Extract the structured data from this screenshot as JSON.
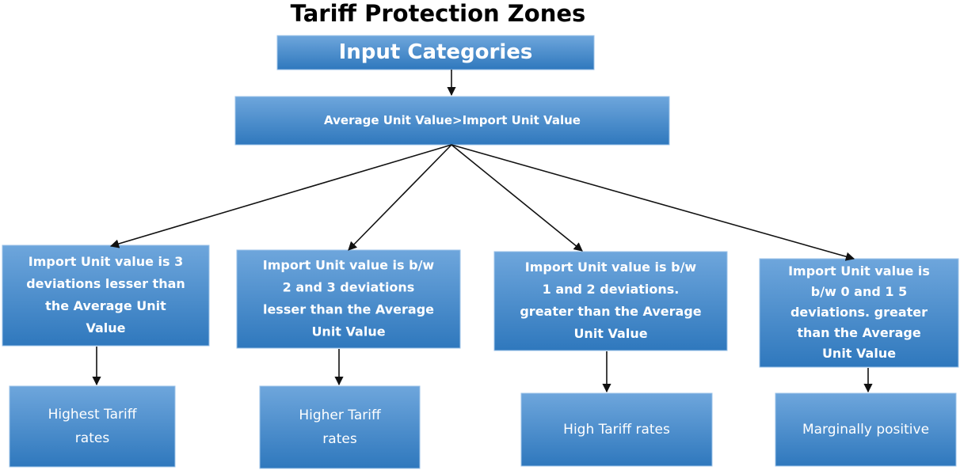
{
  "title": "Tariff Protection Zones",
  "nodes": [
    {
      "lines": [
        "Input Categories"
      ]
    },
    {
      "lines": [
        "Average Unit Value>Import Unit Value"
      ]
    },
    {
      "lines": [
        "Import Unit value is 3",
        "deviations lesser than",
        "the Average Unit",
        "Value"
      ]
    },
    {
      "lines": [
        "Import Unit value is b/w",
        "2 and 3 deviations",
        "lesser than the Average",
        "Unit Value"
      ]
    },
    {
      "lines": [
        "Import Unit value is b/w",
        "1 and 2 deviations.",
        "greater than the Average",
        "Unit Value"
      ]
    },
    {
      "lines": [
        "Import Unit value is",
        "b/w 0 and 1 5",
        "deviations. greater",
        "than the Average",
        "Unit Value"
      ]
    },
    {
      "lines": [
        "Highest Tariff",
        "rates"
      ]
    },
    {
      "lines": [
        "Higher Tariff",
        "rates"
      ]
    },
    {
      "lines": [
        "High Tariff rates"
      ]
    },
    {
      "lines": [
        "Marginally positive"
      ]
    }
  ]
}
